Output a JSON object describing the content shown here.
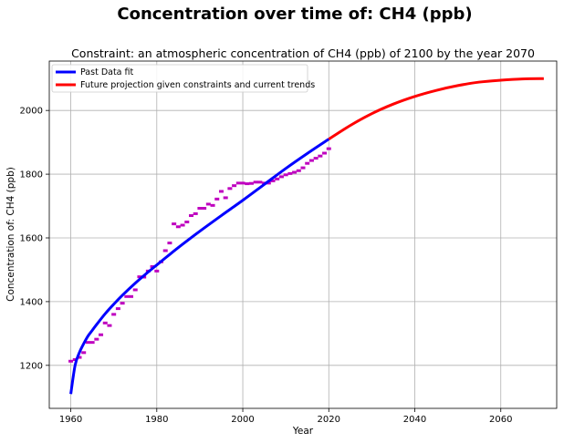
{
  "chart_data": {
    "type": "line",
    "suptitle": "Concentration over time of: CH4 (ppb)",
    "title": "Constraint: an atmospheric concentration of CH4 (ppb) of 2100 by the year 2070",
    "xlabel": "Year",
    "ylabel": "Concentration of: CH4 (ppb)",
    "xlim": [
      1955,
      2073
    ],
    "ylim": [
      1065,
      2155
    ],
    "xticks": [
      1960,
      1980,
      2000,
      2020,
      2040,
      2060
    ],
    "yticks": [
      1200,
      1400,
      1600,
      1800,
      2000
    ],
    "grid": true,
    "legend_position": "top-left",
    "series": [
      {
        "name": "Past Data fit",
        "color": "#0000ff",
        "x": [
          1960,
          1961,
          1962,
          1963,
          1964,
          1965,
          1966,
          1968,
          1970,
          1972,
          1975,
          1978,
          1980,
          1983,
          1986,
          1990,
          1995,
          2000,
          2005,
          2010,
          2015,
          2020
        ],
        "y": [
          1110,
          1200,
          1240,
          1268,
          1292,
          1310,
          1328,
          1362,
          1392,
          1420,
          1458,
          1493,
          1515,
          1548,
          1580,
          1621,
          1670,
          1718,
          1768,
          1818,
          1865,
          1910
        ]
      },
      {
        "name": "Future projection given constraints and current trends",
        "color": "#ff0000",
        "x": [
          2020,
          2025,
          2030,
          2035,
          2040,
          2045,
          2050,
          2055,
          2060,
          2065,
          2070
        ],
        "y": [
          1910,
          1953,
          1990,
          2020,
          2044,
          2063,
          2078,
          2089,
          2095,
          2099,
          2100
        ]
      }
    ],
    "observations": {
      "color": "#bf00bf",
      "x": [
        1960,
        1961,
        1962,
        1963,
        1964,
        1965,
        1966,
        1967,
        1968,
        1969,
        1970,
        1971,
        1972,
        1973,
        1974,
        1975,
        1976,
        1977,
        1978,
        1979,
        1980,
        1981,
        1982,
        1983,
        1984,
        1985,
        1986,
        1987,
        1988,
        1989,
        1990,
        1991,
        1992,
        1993,
        1994,
        1995,
        1996,
        1997,
        1998,
        1999,
        2000,
        2001,
        2002,
        2003,
        2004,
        2005,
        2006,
        2007,
        2008,
        2009,
        2010,
        2011,
        2012,
        2013,
        2014,
        2015,
        2016,
        2017,
        2018,
        2019,
        2020
      ],
      "y": [
        1213,
        1218,
        1225,
        1240,
        1272,
        1272,
        1282,
        1296,
        1333,
        1325,
        1360,
        1378,
        1395,
        1416,
        1416,
        1437,
        1478,
        1477,
        1496,
        1510,
        1496,
        1525,
        1560,
        1584,
        1644,
        1635,
        1640,
        1650,
        1670,
        1676,
        1693,
        1693,
        1706,
        1702,
        1722,
        1746,
        1726,
        1755,
        1764,
        1772,
        1772,
        1770,
        1771,
        1775,
        1775,
        1772,
        1772,
        1779,
        1785,
        1792,
        1798,
        1802,
        1806,
        1811,
        1820,
        1834,
        1843,
        1850,
        1857,
        1866,
        1880
      ]
    }
  }
}
